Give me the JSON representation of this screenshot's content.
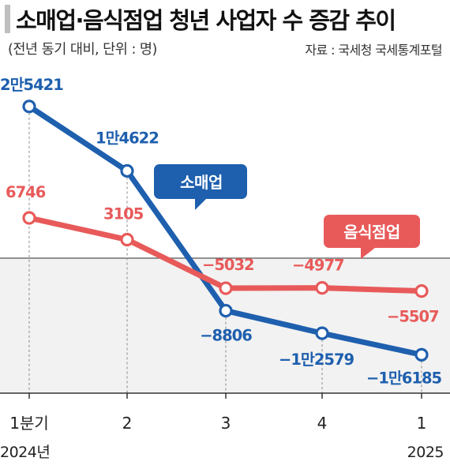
{
  "header": {
    "title": "소매업·음식점업 청년 사업자 수 증감 추이",
    "subtitle": "(전년 동기 대비, 단위 : 명)",
    "source": "자료 : 국세청 국세통계포털"
  },
  "colors": {
    "retail": "#1e5fae",
    "food": "#e85a5a",
    "retail_label": "#1e5fae",
    "food_label": "#e85a5a",
    "negative_area": "#f2f2f2",
    "zero_line": "#555555"
  },
  "chart_data": {
    "type": "line",
    "categories": [
      "1분기",
      "2",
      "3",
      "4",
      "1"
    ],
    "year_labels": [
      "2024년",
      "2025"
    ],
    "series": [
      {
        "name": "소매업",
        "values": [
          25421,
          14622,
          -8806,
          -12579,
          -16185
        ],
        "labels": [
          "2만5421",
          "1만4622",
          "−8806",
          "−1만2579",
          "−1만6185"
        ]
      },
      {
        "name": "음식점업",
        "values": [
          6746,
          3105,
          -5032,
          -4977,
          -5507
        ],
        "labels": [
          "6746",
          "3105",
          "−5032",
          "−4977",
          "−5507"
        ]
      }
    ],
    "ylim": [
      -22000,
      30000
    ],
    "grid": false,
    "legend": "callout-labels"
  }
}
